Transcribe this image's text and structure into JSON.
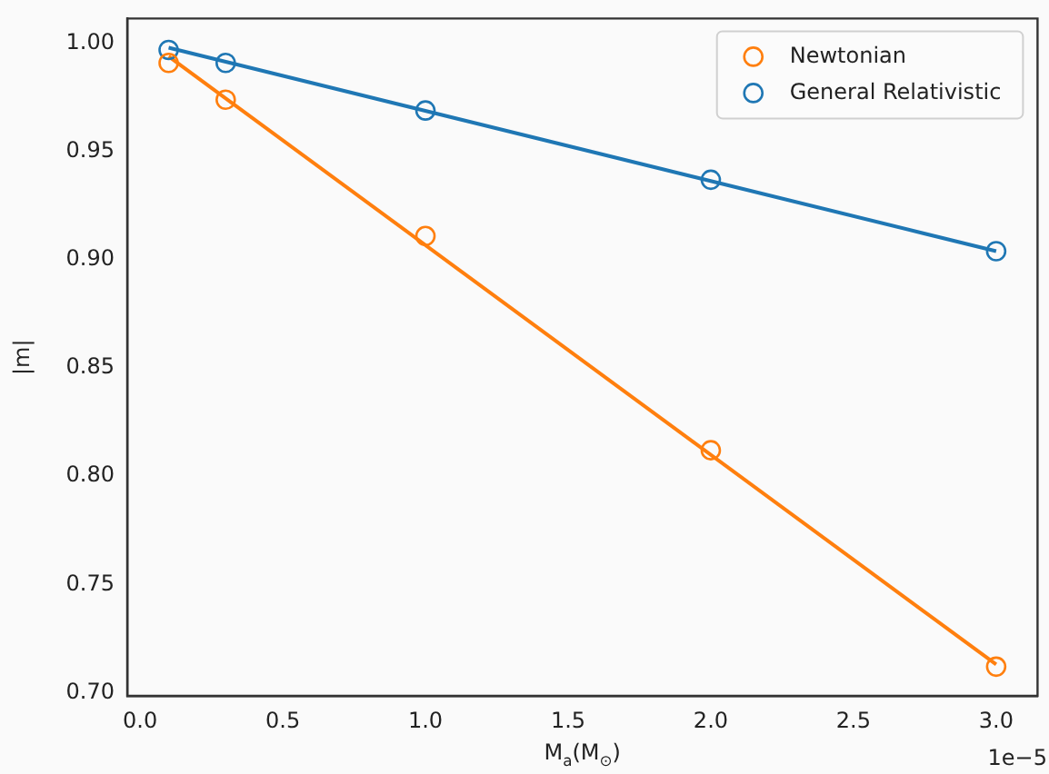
{
  "chart_data": {
    "type": "scatter",
    "xlabel": "M$_{a}$(M$_{⊙}$)",
    "ylabel": "|m|",
    "series": [
      {
        "type": "scatter",
        "name": "Newtonian",
        "color": "#ff7f0e",
        "x": [
          0.1,
          0.3,
          1.0,
          2.0,
          3.0
        ],
        "values": [
          0.991,
          0.974,
          0.911,
          0.812,
          0.712
        ]
      },
      {
        "type": "scatter",
        "name": "General Relativistic",
        "color": "#1f77b4",
        "x": [
          0.1,
          0.3,
          1.0,
          2.0,
          3.0
        ],
        "values": [
          0.997,
          0.991,
          0.969,
          0.937,
          0.904
        ]
      },
      {
        "type": "line",
        "marker": "none",
        "color": "#ff7f0e",
        "x": [
          0.1,
          3.0
        ],
        "values": [
          0.994,
          0.713
        ]
      },
      {
        "type": "line",
        "marker": "none",
        "color": "#1f77b4",
        "x": [
          0.1,
          3.0
        ],
        "values": [
          0.998,
          0.904
        ]
      }
    ],
    "xlim": [
      -0.045,
      3.145
    ],
    "xticks": [
      {
        "value": 0,
        "label": "0.0"
      },
      0.5,
      {
        "value": 1,
        "label": "1.0"
      },
      1.5,
      {
        "value": 2,
        "label": "2.0"
      },
      2.5,
      {
        "value": 3,
        "label": "3.0"
      }
    ],
    "ylim": [
      0.6985,
      1.0115
    ],
    "yticks": [
      {
        "value": 0.7,
        "label": "0.70"
      },
      0.75,
      {
        "value": 0.8,
        "label": "0.80"
      },
      0.85,
      {
        "value": 0.9,
        "label": "0.90"
      },
      0.95,
      {
        "value": 1,
        "label": "1.00"
      }
    ],
    "annotations": [
      "1e−5"
    ],
    "legend": "top right",
    "marker": "circle",
    "grid": false
  }
}
